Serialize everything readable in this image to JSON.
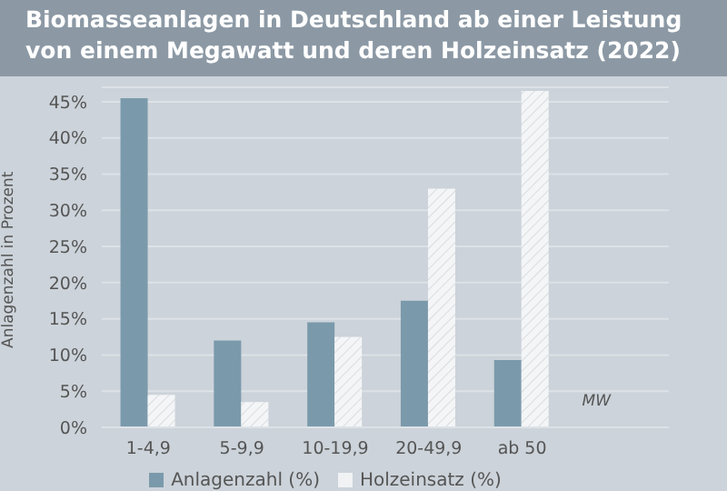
{
  "chart_data": {
    "type": "bar",
    "title": "Biomasseanlagen in Deutschland ab einer Leistung\nvon einem Megawatt und deren Holzeinsatz (2022)",
    "xlabel": "MW",
    "ylabel": "Anlagenzahl in Prozent",
    "categories": [
      "1-4,9",
      "5-9,9",
      "10-19,9",
      "20-49,9",
      "ab 50"
    ],
    "series": [
      {
        "name": "Anlagenzahl (%)",
        "color": "#7a9aab",
        "values": [
          45.5,
          12,
          14.5,
          17.5,
          9.3
        ]
      },
      {
        "name": "Holzeinsatz (%)",
        "color": "#f4f5f6",
        "values": [
          4.5,
          3.5,
          12.5,
          33,
          46.5
        ]
      }
    ],
    "ylim": [
      0,
      47
    ],
    "yticks": [
      {
        "value": 0,
        "label": "0%"
      },
      {
        "value": 5,
        "label": "5%"
      },
      {
        "value": 10,
        "label": "10%"
      },
      {
        "value": 15,
        "label": "15%"
      },
      {
        "value": 20,
        "label": "20%"
      },
      {
        "value": 25,
        "label": "25%"
      },
      {
        "value": 30,
        "label": "30%"
      },
      {
        "value": 35,
        "label": "35%"
      },
      {
        "value": 40,
        "label": "40%"
      },
      {
        "value": 45,
        "label": "45%"
      }
    ],
    "grid": "y",
    "legend": "bottom"
  }
}
